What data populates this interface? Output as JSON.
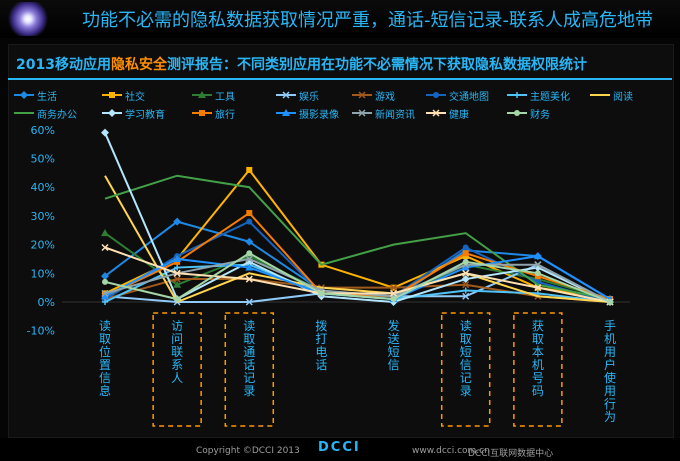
{
  "header": {
    "title": "功能不必需的隐私数据获取情况严重，通话-短信记录-联系人成高危地带"
  },
  "colors": {
    "accent": "#29b6f6",
    "highlight": "#ff8f00",
    "dashed_box": "#ff9800"
  },
  "chart_data": {
    "type": "line",
    "title_parts": [
      "2013移动应用",
      "隐私安全",
      "测评报告：不同类别应用在功能不必需情况下获取隐私数据权限统计"
    ],
    "categories": [
      "读取位置信息",
      "访问联系人",
      "读取通话记录",
      "拨打电话",
      "发送短信",
      "读取短信记录",
      "获取本机号码",
      "手机用户使用行为"
    ],
    "highlighted_categories": [
      "访问联系人",
      "读取通话记录",
      "读取短信记录",
      "获取本机号码"
    ],
    "y_ticks": [
      "-10%",
      "0%",
      "10%",
      "20%",
      "30%",
      "40%",
      "50%",
      "60%"
    ],
    "ylim": [
      -10,
      60
    ],
    "grid": false,
    "legend_position": "top",
    "series": [
      {
        "name": "生活",
        "color": "#1e88e5",
        "marker": "diamond",
        "values": [
          9,
          28,
          21,
          4,
          1,
          18,
          16,
          1
        ]
      },
      {
        "name": "社交",
        "color": "#ffb300",
        "marker": "square",
        "values": [
          3,
          15,
          46,
          13,
          5,
          16,
          5,
          1
        ]
      },
      {
        "name": "工具",
        "color": "#2e7d32",
        "marker": "triangle",
        "values": [
          24,
          6,
          16,
          4,
          1,
          13,
          8,
          1
        ]
      },
      {
        "name": "娱乐",
        "color": "#90caf9",
        "marker": "x",
        "values": [
          2,
          0,
          0,
          3,
          2,
          2,
          13,
          0
        ]
      },
      {
        "name": "游戏",
        "color": "#a1591c",
        "marker": "x",
        "values": [
          1,
          8,
          8,
          5,
          5,
          6,
          2,
          0
        ]
      },
      {
        "name": "交通地图",
        "color": "#1565c0",
        "marker": "circle",
        "values": [
          1,
          16,
          28,
          3,
          2,
          19,
          7,
          0
        ]
      },
      {
        "name": "主题美化",
        "color": "#4fc3f7",
        "marker": "plus",
        "values": [
          0,
          12,
          13,
          3,
          1,
          4,
          3,
          0
        ]
      },
      {
        "name": "阅读",
        "color": "#ffd54f",
        "marker": "none",
        "values": [
          44,
          0,
          10,
          5,
          3,
          10,
          2,
          0
        ]
      },
      {
        "name": "商务办公",
        "color": "#43a047",
        "marker": "none",
        "values": [
          36,
          44,
          40,
          13,
          20,
          24,
          6,
          1
        ]
      },
      {
        "name": "学习教育",
        "color": "#b3e5fc",
        "marker": "diamond",
        "values": [
          59,
          1,
          14,
          2,
          0,
          8,
          12,
          0
        ]
      },
      {
        "name": "旅行",
        "color": "#f57c00",
        "marker": "square",
        "values": [
          2,
          14,
          31,
          3,
          2,
          17,
          9,
          1
        ]
      },
      {
        "name": "摄影录像",
        "color": "#1e90ff",
        "marker": "triangle",
        "values": [
          2,
          15,
          12,
          3,
          1,
          12,
          16,
          1
        ]
      },
      {
        "name": "新闻资讯",
        "color": "#90a4ae",
        "marker": "x",
        "values": [
          3,
          10,
          15,
          4,
          2,
          13,
          13,
          0
        ]
      },
      {
        "name": "健康",
        "color": "#ffe0b2",
        "marker": "x",
        "values": [
          19,
          10,
          8,
          3,
          3,
          10,
          5,
          0
        ]
      },
      {
        "name": "财务",
        "color": "#a5d6a7",
        "marker": "circle",
        "values": [
          7,
          1,
          17,
          3,
          1,
          14,
          10,
          0
        ]
      }
    ]
  },
  "footer": {
    "copyright": "Copyright ©DCCI 2013",
    "website": "www.dcci.com.cn",
    "brand": "DCCI",
    "center": "DCCI互联网数据中心"
  }
}
